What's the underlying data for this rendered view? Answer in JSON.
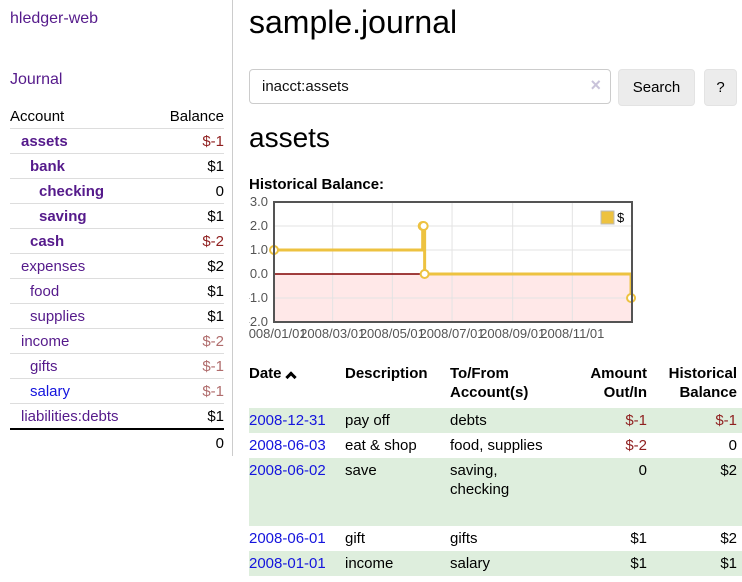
{
  "palette": {
    "link_purple": "#551a8b",
    "link_blue": "#1414dd",
    "negative_strong": "#8f1f1f",
    "negative_dim": "#b06c6c",
    "row_stripe_green": "#deeedd",
    "chart_series_gold": "#edc240",
    "chart_negative_region": "rgba(255,0,0,0.09)",
    "chart_zero_line": "#800000",
    "chart_border": "#545454",
    "button_bg": "#ececec"
  },
  "app_title": "hledger-web",
  "sidebar": {
    "journal_link": "Journal",
    "accounts_table": {
      "headers": {
        "account": "Account",
        "balance": "Balance"
      },
      "rows": [
        {
          "name": "assets",
          "balance": "$-1"
        },
        {
          "name": "bank",
          "balance": "$1"
        },
        {
          "name": "checking",
          "balance": "0"
        },
        {
          "name": "saving",
          "balance": "$1"
        },
        {
          "name": "cash",
          "balance": "$-2"
        },
        {
          "name": "expenses",
          "balance": "$2"
        },
        {
          "name": "food",
          "balance": "$1"
        },
        {
          "name": "supplies",
          "balance": "$1"
        },
        {
          "name": "income",
          "balance": "$-2"
        },
        {
          "name": "gifts",
          "balance": "$-1"
        },
        {
          "name": "salary",
          "balance": "$-1"
        },
        {
          "name": "liabilities:debts",
          "balance": "$1"
        }
      ],
      "total": "0"
    }
  },
  "main": {
    "title": "sample.journal",
    "search": {
      "value": "inacct:assets",
      "clear_icon": "×",
      "search_button": "Search",
      "help_button": "?"
    },
    "account_heading": "assets",
    "chart_title": "Historical Balance:"
  },
  "chart_data": {
    "type": "line",
    "step": true,
    "title": "Historical Balance:",
    "series": [
      {
        "name": "$",
        "color": "#edc240",
        "points": [
          [
            "2008-01-01",
            1
          ],
          [
            "2008-06-01",
            2
          ],
          [
            "2008-06-02",
            2
          ],
          [
            "2008-06-03",
            0
          ],
          [
            "2008-12-31",
            -1
          ]
        ]
      }
    ],
    "x_ticks": [
      "2008/01/01",
      "2008/03/01",
      "2008/05/01",
      "2008/07/01",
      "2008/09/01",
      "2008/11/01"
    ],
    "y_ticks": [
      "3.0",
      "2.0",
      "1.0",
      "0.0",
      "-1.0",
      "-2.0"
    ],
    "ylim": [
      -2,
      3
    ],
    "xlim_days": 366,
    "legend": {
      "label": "$",
      "position": "top-right"
    },
    "grid": true,
    "negative_region": true
  },
  "register": {
    "headers": {
      "date": "Date",
      "description": "Description",
      "accounts": "To/From Account(s)",
      "amount": "Amount Out/In",
      "balance": "Historical Balance"
    },
    "rows": [
      {
        "date": "2008-12-31",
        "description": "pay off",
        "accounts": "debts",
        "amount": "$-1",
        "balance": "$-1"
      },
      {
        "date": "2008-06-03",
        "description": "eat & shop",
        "accounts": "food, supplies",
        "amount": "$-2",
        "balance": "0"
      },
      {
        "date": "2008-06-02",
        "description": "save",
        "accounts": "saving, checking",
        "amount": "0",
        "balance": "$2"
      },
      {
        "date": "2008-06-01",
        "description": "gift",
        "accounts": "gifts",
        "amount": "$1",
        "balance": "$2"
      },
      {
        "date": "2008-01-01",
        "description": "income",
        "accounts": "salary",
        "amount": "$1",
        "balance": "$1"
      }
    ]
  }
}
